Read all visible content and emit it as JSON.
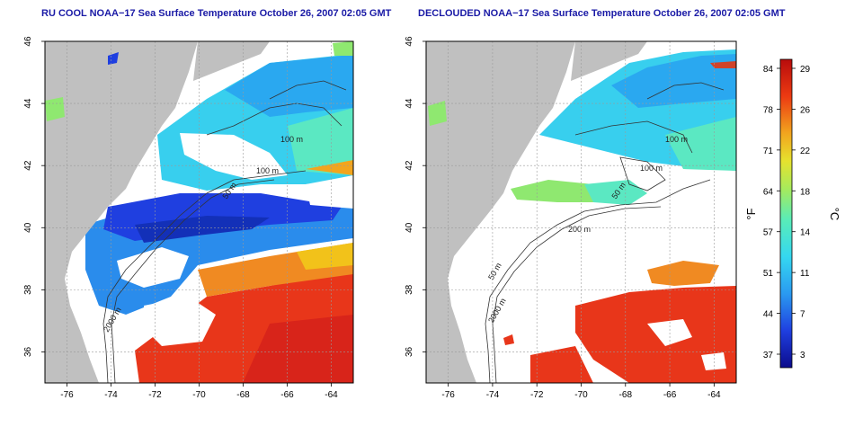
{
  "panels": [
    {
      "title": "RU COOL NOAA−17 Sea Surface Temperature October 26, 2007 02:05 GMT",
      "contour_labels": [
        "100 m",
        "100 m",
        "50 m",
        "2000 m"
      ]
    },
    {
      "title": "DECLOUDED NOAA−17 Sea Surface Temperature October 26, 2007 02:05 GMT",
      "contour_labels": [
        "100 m",
        "100 m",
        "50 m",
        "200 m",
        "50 m",
        "2000 m"
      ]
    }
  ],
  "map_axes": {
    "x_ticks": [
      "-76",
      "-74",
      "-72",
      "-70",
      "-68",
      "-66",
      "-64"
    ],
    "y_ticks": [
      "36",
      "38",
      "40",
      "42",
      "44",
      "46"
    ],
    "lon_range": [
      -77,
      -63
    ],
    "lat_range": [
      35,
      46
    ]
  },
  "colorbar": {
    "fahrenheit_ticks": [
      "84",
      "78",
      "71",
      "64",
      "57",
      "51",
      "44",
      "37"
    ],
    "celsius_ticks": [
      "29",
      "26",
      "22",
      "18",
      "14",
      "11",
      "7",
      "3"
    ],
    "fahrenheit_unit": "°F",
    "celsius_unit": "°C",
    "colors": [
      "#0b0b8c",
      "#1f3fe0",
      "#2a9af0",
      "#35d8f0",
      "#59ecb8",
      "#a6ea5c",
      "#e6e22e",
      "#f2a51e",
      "#ec3a12",
      "#b80c0c"
    ]
  },
  "colors": {
    "land": "#c0c0c0",
    "cloud": "#ffffff",
    "frame": "#000000",
    "title": "#1a1aa6"
  }
}
